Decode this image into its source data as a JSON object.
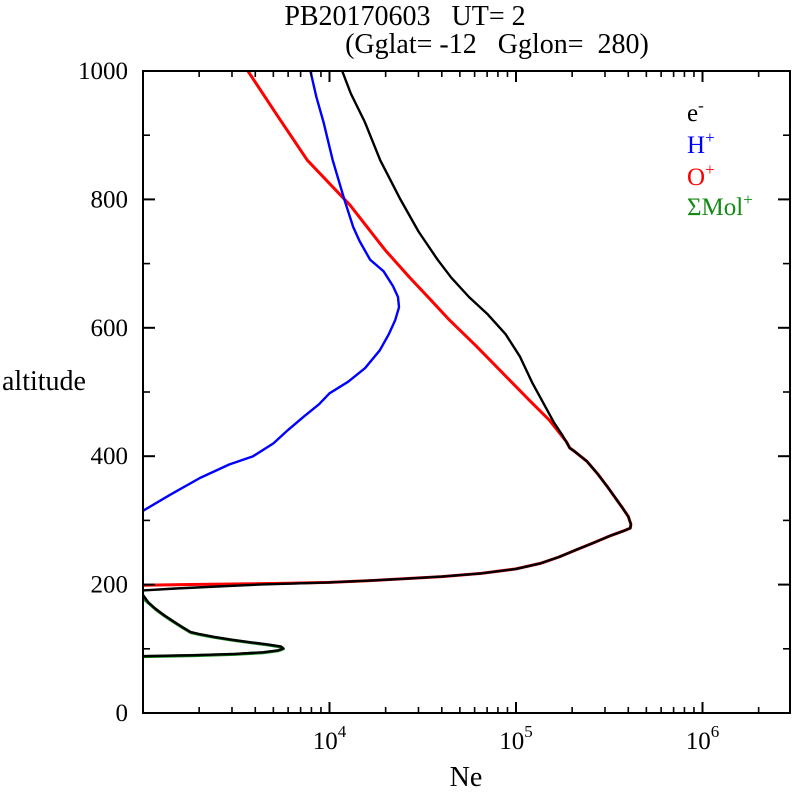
{
  "chart_data": {
    "type": "line",
    "title": "PB20170603   UT= 2",
    "subtitle": "(Gglat= -12   Gglon=  280)",
    "xlabel": "Ne",
    "ylabel": "altitude",
    "x_scale": "log",
    "x_range": [
      1000,
      2950000
    ],
    "y_range": [
      0,
      1000
    ],
    "grid": false,
    "legend_position": "upper-right-inside",
    "series": [
      {
        "id": "electron",
        "name": "e-",
        "color": "#000000",
        "segments": [
          [
            [
              1000,
              88.5
            ],
            [
              1900,
              90
            ],
            [
              3100,
              92
            ],
            [
              4400,
              94.5
            ],
            [
              5300,
              97.5
            ],
            [
              5650,
              100.5
            ],
            [
              5500,
              103.5
            ],
            [
              4700,
              106.5
            ],
            [
              3800,
              110
            ],
            [
              3000,
              114
            ],
            [
              2400,
              118.5
            ],
            [
              2000,
              123
            ],
            [
              1800,
              126
            ],
            [
              1620,
              134
            ],
            [
              1450,
              143
            ],
            [
              1300,
              152
            ],
            [
              1170,
              162
            ],
            [
              1070,
              172
            ],
            [
              1000,
              184
            ]
          ],
          [
            [
              1000,
              191
            ],
            [
              1500,
              194
            ],
            [
              2500,
              197
            ],
            [
              4200,
              200
            ],
            [
              7000,
              202
            ],
            [
              10000,
              203.5
            ],
            [
              16000,
              206
            ],
            [
              25000,
              209
            ],
            [
              40000,
              212.5
            ],
            [
              65000,
              217.5
            ],
            [
              100000,
              224.5
            ],
            [
              135000,
              233
            ],
            [
              170000,
              243
            ],
            [
              210000,
              254
            ],
            [
              260000,
              265
            ],
            [
              320000,
              276
            ],
            [
              380000,
              284
            ],
            [
              410000,
              288
            ],
            [
              413000,
              294
            ],
            [
              400000,
              306
            ],
            [
              375000,
              318
            ],
            [
              345000,
              333
            ],
            [
              310000,
              352
            ],
            [
              275000,
              372
            ],
            [
              240000,
              392
            ],
            [
              205000,
              408
            ],
            [
              194000,
              413
            ],
            [
              178000,
              432
            ],
            [
              160000,
              452
            ],
            [
              143000,
              478
            ],
            [
              122000,
              515
            ],
            [
              105000,
              555
            ],
            [
              88000,
              590
            ],
            [
              70000,
              622
            ],
            [
              56000,
              648
            ],
            [
              45000,
              678
            ],
            [
              38000,
              706
            ],
            [
              30000,
              750
            ],
            [
              24000,
              800
            ],
            [
              18700,
              861
            ],
            [
              15500,
              920
            ],
            [
              13000,
              965
            ],
            [
              11700,
              1000
            ]
          ]
        ]
      },
      {
        "id": "h-plus",
        "name": "H+",
        "color": "#0000ff",
        "segments": [
          [
            [
              1000,
              315
            ],
            [
              1400,
              340
            ],
            [
              2020,
              366
            ],
            [
              2900,
              387
            ],
            [
              3900,
              400
            ],
            [
              5000,
              420
            ],
            [
              6000,
              441
            ],
            [
              7300,
              462
            ],
            [
              8800,
              481
            ],
            [
              10000,
              498
            ],
            [
              12600,
              516
            ],
            [
              15500,
              537
            ],
            [
              18600,
              565
            ],
            [
              20800,
              590
            ],
            [
              22500,
              612
            ],
            [
              23600,
              632
            ],
            [
              23300,
              648
            ],
            [
              21900,
              665
            ],
            [
              19500,
              688
            ],
            [
              16500,
              706
            ],
            [
              14500,
              735
            ],
            [
              13400,
              757
            ],
            [
              12000,
              800
            ],
            [
              10400,
              861
            ],
            [
              9300,
              920
            ],
            [
              8500,
              960
            ],
            [
              7900,
              1000
            ]
          ]
        ]
      },
      {
        "id": "o-plus",
        "name": "O+",
        "color": "#ff0000",
        "segments": [
          [
            [
              1000,
              199
            ],
            [
              1600,
              200
            ],
            [
              3000,
              201
            ],
            [
              6000,
              202
            ],
            [
              10000,
              203.5
            ],
            [
              16000,
              206
            ],
            [
              25000,
              209
            ],
            [
              40000,
              212.5
            ],
            [
              65000,
              217.5
            ],
            [
              100000,
              224.5
            ],
            [
              135000,
              233
            ],
            [
              170000,
              243
            ],
            [
              210000,
              254
            ],
            [
              260000,
              265
            ],
            [
              320000,
              276
            ],
            [
              380000,
              284
            ],
            [
              410000,
              288
            ],
            [
              413000,
              294
            ],
            [
              400000,
              306
            ],
            [
              375000,
              318
            ],
            [
              345000,
              333
            ],
            [
              310000,
              352
            ],
            [
              275000,
              372
            ],
            [
              240000,
              392
            ],
            [
              205000,
              408
            ],
            [
              194000,
              413
            ],
            [
              187000,
              422
            ],
            [
              151000,
              456
            ],
            [
              118000,
              487
            ],
            [
              82000,
              534
            ],
            [
              61000,
              572
            ],
            [
              44000,
              612
            ],
            [
              35000,
              643
            ],
            [
              26800,
              679
            ],
            [
              19900,
              721
            ],
            [
              12900,
              791
            ],
            [
              7600,
              861
            ],
            [
              5100,
              936
            ],
            [
              3650,
              1000
            ]
          ]
        ]
      },
      {
        "id": "mol-plus",
        "name": "ΣMol+",
        "color": "#168a16",
        "segments": [
          [
            [
              1000,
              88
            ],
            [
              1900,
              89.5
            ],
            [
              3100,
              91.5
            ],
            [
              4400,
              94
            ],
            [
              5300,
              97
            ],
            [
              5650,
              100
            ],
            [
              5500,
              103
            ],
            [
              4700,
              106
            ],
            [
              3800,
              109.5
            ],
            [
              3000,
              113.5
            ],
            [
              2400,
              118
            ],
            [
              2000,
              122.5
            ],
            [
              1800,
              125.5
            ],
            [
              1620,
              133.5
            ],
            [
              1450,
              142.5
            ],
            [
              1300,
              151.5
            ],
            [
              1170,
              161.5
            ],
            [
              1070,
              171.5
            ],
            [
              1000,
              179
            ]
          ]
        ]
      }
    ]
  },
  "axes": {
    "x": {
      "scale": "log",
      "major_ticks": [
        {
          "value": 10000,
          "base": "10",
          "sup": "4"
        },
        {
          "value": 100000,
          "base": "10",
          "sup": "5"
        },
        {
          "value": 1000000,
          "base": "10",
          "sup": "6"
        }
      ],
      "minor_tick_values": [
        2000,
        3000,
        4000,
        5000,
        6000,
        7000,
        8000,
        9000,
        20000,
        30000,
        40000,
        50000,
        60000,
        70000,
        80000,
        90000,
        200000,
        300000,
        400000,
        500000,
        600000,
        700000,
        800000,
        900000,
        2000000
      ]
    },
    "y": {
      "scale": "linear",
      "major_ticks": [
        {
          "value": 0,
          "label": "0"
        },
        {
          "value": 200,
          "label": "200"
        },
        {
          "value": 400,
          "label": "400"
        },
        {
          "value": 600,
          "label": "600"
        },
        {
          "value": 800,
          "label": "800"
        },
        {
          "value": 1000,
          "label": "1000"
        }
      ],
      "minor_tick_values": [
        100,
        300,
        500,
        700,
        900
      ]
    }
  },
  "legend": {
    "items": [
      {
        "id": "electron",
        "text": "e",
        "sup": "-",
        "color": "#000000"
      },
      {
        "id": "h-plus",
        "text": "H",
        "sup": "+",
        "color": "#0000ff"
      },
      {
        "id": "o-plus",
        "text": "O",
        "sup": "+",
        "color": "#ff0000"
      },
      {
        "id": "mol-plus",
        "text": "ΣMol",
        "sup": "+",
        "color": "#168a16"
      }
    ]
  }
}
